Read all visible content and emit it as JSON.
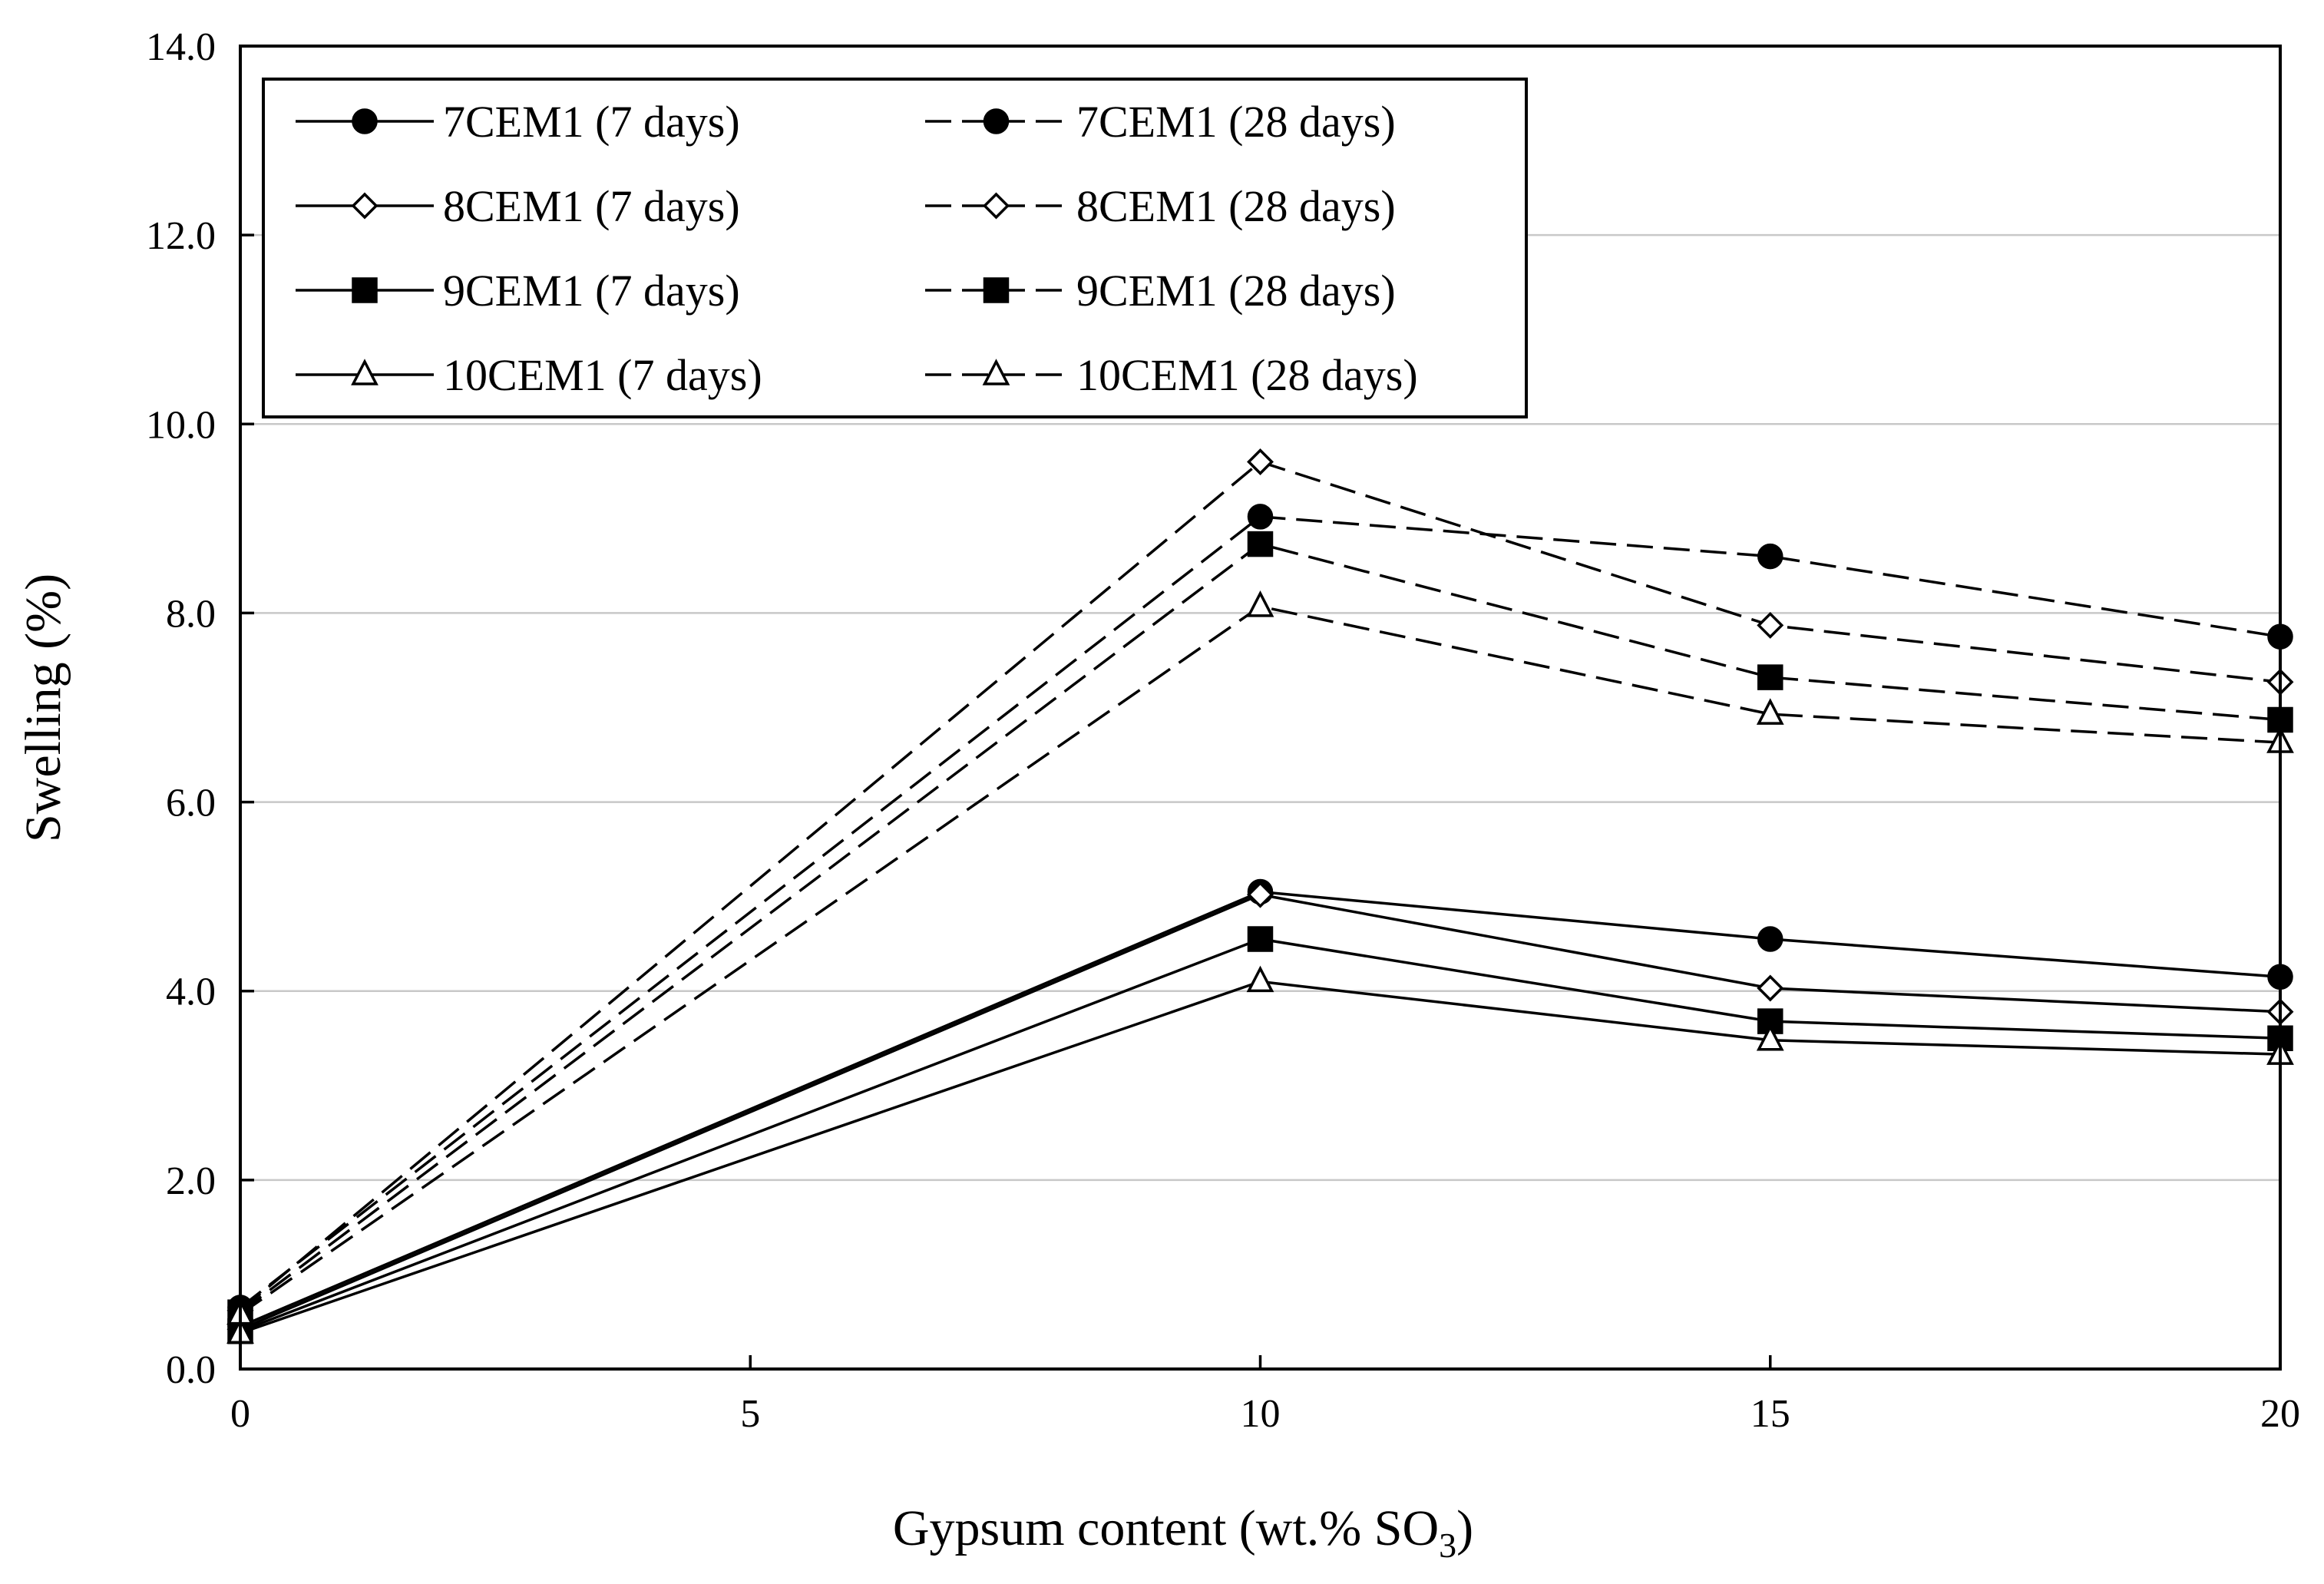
{
  "chart_data": {
    "type": "line",
    "title": "",
    "xlabel": "Gypsum  content (wt.% SO",
    "xlabel_subscript": "3",
    "xlabel_suffix": ")",
    "ylabel": "Swelling (%)",
    "xlim": [
      0,
      20
    ],
    "ylim": [
      0,
      14
    ],
    "x_ticks": [
      0,
      5,
      10,
      15,
      20
    ],
    "x_tick_labels": [
      "0",
      "5",
      "10",
      "15",
      "20"
    ],
    "y_ticks": [
      0,
      2,
      4,
      6,
      8,
      10,
      12,
      14
    ],
    "y_tick_labels": [
      "0.0",
      "2.0",
      "4.0",
      "6.0",
      "8.0",
      "10.0",
      "12.0",
      "14.0"
    ],
    "grid": "horizontal",
    "legend_position": "top-left",
    "legend_columns": 2,
    "x": [
      0,
      10,
      15,
      20
    ],
    "series": [
      {
        "name": "7CEM1 (7 days)",
        "marker": "circle-filled",
        "line": "solid",
        "values": [
          0.45,
          5.05,
          4.55,
          4.15
        ]
      },
      {
        "name": "7CEM1 (28 days)",
        "marker": "circle-filled",
        "line": "dashed",
        "values": [
          0.65,
          9.02,
          8.6,
          7.75
        ]
      },
      {
        "name": "8CEM1 (7 days)",
        "marker": "diamond-open",
        "line": "solid",
        "values": [
          0.42,
          5.02,
          4.03,
          3.78
        ]
      },
      {
        "name": "8CEM1 (28 days)",
        "marker": "diamond-open",
        "line": "dashed",
        "values": [
          0.62,
          9.6,
          7.87,
          7.27
        ]
      },
      {
        "name": "9CEM1 (7 days)",
        "marker": "square-filled",
        "line": "solid",
        "values": [
          0.4,
          4.55,
          3.68,
          3.5
        ]
      },
      {
        "name": "9CEM1 (28 days)",
        "marker": "square-filled",
        "line": "dashed",
        "values": [
          0.6,
          8.73,
          7.32,
          6.87
        ]
      },
      {
        "name": "10CEM1 (7 days)",
        "marker": "triangle-open",
        "line": "solid",
        "values": [
          0.38,
          4.1,
          3.48,
          3.33
        ]
      },
      {
        "name": "10CEM1 (28 days)",
        "marker": "triangle-open",
        "line": "dashed",
        "values": [
          0.58,
          8.07,
          6.93,
          6.63
        ]
      }
    ]
  }
}
